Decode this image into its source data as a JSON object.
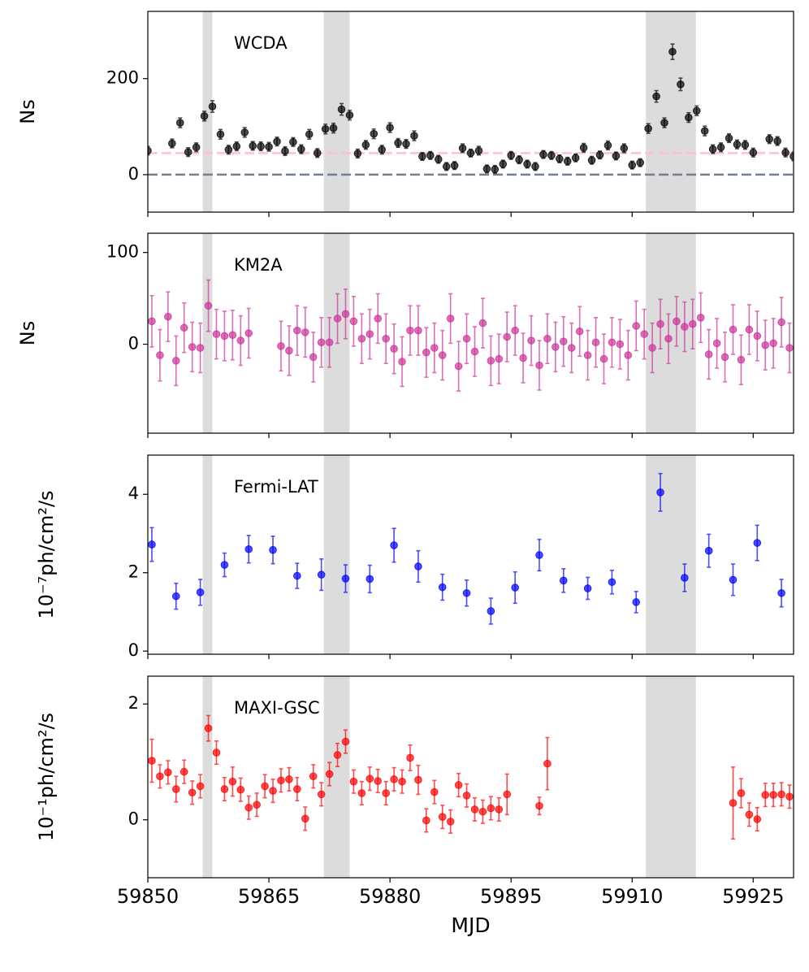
{
  "chart_data": [
    {
      "type": "scatter",
      "annotation": "WCDA",
      "ylabel": "Ns",
      "color": "#000000",
      "x": [
        59850,
        59853,
        59854,
        59855,
        59856,
        59857,
        59858,
        59859,
        59860,
        59861,
        59862,
        59863,
        59864,
        59865,
        59866,
        59867,
        59868,
        59869,
        59870,
        59871,
        59872,
        59873,
        59874,
        59875,
        59876,
        59877,
        59878,
        59879,
        59880,
        59881,
        59882,
        59883,
        59884,
        59885,
        59886,
        59887,
        59888,
        59889,
        59890,
        59891,
        59892,
        59893,
        59894,
        59895,
        59896,
        59897,
        59898,
        59899,
        59900,
        59901,
        59902,
        59903,
        59904,
        59905,
        59906,
        59907,
        59908,
        59909,
        59910,
        59911,
        59912,
        59913,
        59914,
        59915,
        59916,
        59917,
        59918,
        59919,
        59920,
        59921,
        59922,
        59923,
        59924,
        59925,
        59927,
        59928,
        59929,
        59930
      ],
      "values": [
        50,
        65,
        108,
        47,
        57,
        122,
        142,
        84,
        52,
        59,
        88,
        60,
        59,
        58,
        69,
        49,
        68,
        53,
        84,
        45,
        95,
        97,
        136,
        124,
        44,
        62,
        85,
        52,
        98,
        66,
        64,
        81,
        38,
        40,
        32,
        17,
        19,
        55,
        45,
        50,
        12,
        11,
        22,
        40,
        31,
        22,
        17,
        42,
        40,
        33,
        28,
        35,
        56,
        30,
        41,
        61,
        39,
        55,
        20,
        25,
        96,
        163,
        108,
        256,
        188,
        119,
        133,
        91,
        53,
        57,
        76,
        63,
        62,
        46,
        74,
        70,
        46,
        38
      ],
      "errors": [
        9,
        9,
        10,
        9,
        9,
        10,
        12,
        10,
        9,
        9,
        10,
        9,
        9,
        9,
        9,
        9,
        9,
        9,
        10,
        9,
        10,
        10,
        12,
        10,
        9,
        9,
        10,
        9,
        10,
        9,
        9,
        10,
        8,
        8,
        8,
        8,
        8,
        9,
        8,
        9,
        8,
        8,
        8,
        8,
        8,
        8,
        8,
        8,
        8,
        8,
        8,
        8,
        9,
        8,
        8,
        9,
        8,
        9,
        8,
        8,
        10,
        12,
        10,
        16,
        13,
        10,
        10,
        10,
        9,
        9,
        9,
        9,
        9,
        9,
        9,
        9,
        9,
        9
      ],
      "xlim": [
        59850,
        59930
      ],
      "xticks": [
        59850,
        59865,
        59880,
        59895,
        59910,
        59925
      ],
      "ylim": [
        -78,
        340
      ],
      "yticks": [
        0,
        200
      ],
      "shaded_spans": [
        [
          59856.8,
          59858.0
        ],
        [
          59871.8,
          59875.0
        ],
        [
          59911.7,
          59917.9
        ]
      ],
      "hlines": [
        {
          "y": 0,
          "color": "#708090"
        },
        {
          "y": 45,
          "color": "#ffc0cb"
        }
      ]
    },
    {
      "type": "scatter",
      "annotation": "KM2A",
      "ylabel": "Ns",
      "color": "#cc3399",
      "x": [
        59850.5,
        59851.5,
        59852.5,
        59853.5,
        59854.5,
        59855.5,
        59856.5,
        59857.5,
        59858.5,
        59859.5,
        59860.5,
        59861.5,
        59862.5,
        59866.5,
        59867.5,
        59868.5,
        59869.5,
        59870.5,
        59871.5,
        59872.5,
        59873.5,
        59874.5,
        59875.5,
        59876.5,
        59877.5,
        59878.5,
        59879.5,
        59880.5,
        59881.5,
        59882.5,
        59883.5,
        59884.5,
        59885.5,
        59886.5,
        59887.5,
        59888.5,
        59889.5,
        59890.5,
        59891.5,
        59892.5,
        59893.5,
        59894.5,
        59895.5,
        59896.5,
        59897.5,
        59898.5,
        59899.5,
        59900.5,
        59901.5,
        59902.5,
        59903.5,
        59904.5,
        59905.5,
        59906.5,
        59907.5,
        59908.5,
        59909.5,
        59910.5,
        59911.5,
        59912.5,
        59913.5,
        59914.5,
        59915.5,
        59916.5,
        59917.5,
        59918.5,
        59919.5,
        59920.5,
        59921.5,
        59922.5,
        59923.5,
        59924.5,
        59925.5,
        59926.5,
        59927.5,
        59928.5,
        59929.5
      ],
      "values": [
        25,
        -12,
        30,
        -18,
        18,
        -3,
        -4,
        42,
        11,
        9,
        10,
        4,
        12,
        -2,
        -7,
        15,
        13,
        -14,
        2,
        2,
        28,
        33,
        25,
        6,
        11,
        28,
        6,
        -5,
        -19,
        15,
        15,
        -9,
        -4,
        -12,
        28,
        -24,
        6,
        -8,
        23,
        -18,
        -16,
        8,
        15,
        -15,
        4,
        -23,
        6,
        -3,
        3,
        -4,
        14,
        -12,
        2,
        -16,
        2,
        0,
        -12,
        20,
        11,
        -4,
        22,
        6,
        25,
        19,
        22,
        29,
        -11,
        1,
        -14,
        16,
        -17,
        16,
        9,
        -1,
        1,
        24,
        -4
      ],
      "errors": [
        28,
        28,
        27,
        27,
        27,
        27,
        27,
        28,
        27,
        27,
        27,
        27,
        27,
        27,
        27,
        27,
        27,
        27,
        27,
        27,
        27,
        27,
        27,
        27,
        27,
        27,
        27,
        27,
        27,
        27,
        27,
        27,
        27,
        27,
        27,
        27,
        27,
        27,
        27,
        27,
        27,
        27,
        27,
        27,
        27,
        27,
        27,
        27,
        27,
        27,
        27,
        27,
        27,
        27,
        27,
        27,
        27,
        27,
        27,
        27,
        27,
        27,
        27,
        27,
        27,
        27,
        27,
        27,
        27,
        27,
        27,
        27,
        27,
        27,
        27,
        27,
        27
      ],
      "xlim": [
        59850,
        59930
      ],
      "xticks": [
        59850,
        59865,
        59880,
        59895,
        59910,
        59925
      ],
      "ylim": [
        -97,
        121
      ],
      "yticks": [
        0,
        100
      ],
      "shaded_spans": [
        [
          59856.8,
          59858.0
        ],
        [
          59871.8,
          59875.0
        ],
        [
          59911.7,
          59917.9
        ]
      ]
    },
    {
      "type": "scatter",
      "annotation": "Fermi-LAT",
      "ylabel": "10⁻⁷ph/cm²/s",
      "color": "#0000ff",
      "x": [
        59850.5,
        59853.5,
        59856.5,
        59859.5,
        59862.5,
        59865.5,
        59868.5,
        59871.5,
        59874.5,
        59877.5,
        59880.5,
        59883.5,
        59886.5,
        59889.5,
        59892.5,
        59895.5,
        59898.5,
        59901.5,
        59904.5,
        59907.5,
        59910.5,
        59913.5,
        59916.5,
        59919.5,
        59922.5,
        59925.5,
        59928.5
      ],
      "values": [
        2.72,
        1.4,
        1.5,
        2.2,
        2.6,
        2.58,
        1.92,
        1.95,
        1.85,
        1.84,
        2.7,
        2.16,
        1.63,
        1.48,
        1.02,
        1.62,
        2.45,
        1.8,
        1.6,
        1.76,
        1.25,
        4.05,
        1.87,
        2.56,
        1.82,
        2.76,
        1.48
      ],
      "errors": [
        0.43,
        0.33,
        0.33,
        0.3,
        0.35,
        0.35,
        0.32,
        0.4,
        0.35,
        0.35,
        0.43,
        0.4,
        0.33,
        0.33,
        0.33,
        0.4,
        0.4,
        0.3,
        0.28,
        0.3,
        0.27,
        0.48,
        0.35,
        0.42,
        0.4,
        0.45,
        0.35
      ],
      "xlim": [
        59850,
        59930
      ],
      "xticks": [
        59850,
        59865,
        59880,
        59895,
        59910,
        59925
      ],
      "ylim": [
        -0.08,
        5
      ],
      "yticks": [
        0,
        2,
        4
      ],
      "shaded_spans": [
        [
          59856.8,
          59858.0
        ],
        [
          59871.8,
          59875.0
        ],
        [
          59911.7,
          59917.9
        ]
      ]
    },
    {
      "type": "scatter",
      "annotation": "MAXI-GSC",
      "ylabel": "10⁻¹ph/cm²/s",
      "xlabel": "MJD",
      "color": "#ff0000",
      "x": [
        59850.5,
        59851.5,
        59852.5,
        59853.5,
        59854.5,
        59855.5,
        59856.5,
        59857.5,
        59858.5,
        59859.5,
        59860.5,
        59861.5,
        59862.5,
        59863.5,
        59864.5,
        59865.5,
        59866.5,
        59867.5,
        59868.5,
        59869.5,
        59870.5,
        59871.5,
        59872.5,
        59873.5,
        59874.5,
        59875.5,
        59876.5,
        59877.5,
        59878.5,
        59879.5,
        59880.5,
        59881.5,
        59882.5,
        59883.5,
        59884.5,
        59885.5,
        59886.5,
        59887.5,
        59888.5,
        59889.5,
        59890.5,
        59891.5,
        59892.5,
        59893.5,
        59894.5,
        59898.5,
        59899.5,
        59922.5,
        59923.5,
        59924.5,
        59925.5,
        59926.5,
        59927.5,
        59928.5,
        59929.5
      ],
      "values": [
        1.02,
        0.75,
        0.82,
        0.53,
        0.83,
        0.47,
        0.58,
        1.58,
        1.16,
        0.53,
        0.66,
        0.52,
        0.21,
        0.26,
        0.58,
        0.5,
        0.68,
        0.7,
        0.53,
        0.02,
        0.75,
        0.44,
        0.79,
        1.12,
        1.35,
        0.66,
        0.46,
        0.71,
        0.67,
        0.46,
        0.7,
        0.66,
        1.07,
        0.69,
        -0.01,
        0.48,
        0.05,
        -0.03,
        0.6,
        0.42,
        0.18,
        0.14,
        0.2,
        0.18,
        0.44,
        0.24,
        0.97,
        0.29,
        0.46,
        0.09,
        0.01,
        0.43,
        0.43,
        0.44,
        0.4
      ],
      "errors": [
        0.37,
        0.2,
        0.2,
        0.22,
        0.2,
        0.2,
        0.2,
        0.22,
        0.2,
        0.2,
        0.25,
        0.2,
        0.2,
        0.2,
        0.2,
        0.2,
        0.2,
        0.2,
        0.2,
        0.2,
        0.2,
        0.2,
        0.2,
        0.2,
        0.2,
        0.2,
        0.2,
        0.2,
        0.2,
        0.2,
        0.2,
        0.2,
        0.22,
        0.25,
        0.2,
        0.2,
        0.2,
        0.2,
        0.2,
        0.2,
        0.2,
        0.2,
        0.2,
        0.2,
        0.35,
        0.15,
        0.45,
        0.62,
        0.25,
        0.2,
        0.2,
        0.2,
        0.2,
        0.2,
        0.2
      ],
      "xlim": [
        59850,
        59930
      ],
      "xticks": [
        59850,
        59865,
        59880,
        59895,
        59910,
        59925
      ],
      "ylim": [
        -1.0,
        2.48
      ],
      "yticks": [
        0,
        2
      ],
      "shaded_spans": [
        [
          59856.8,
          59858.0
        ],
        [
          59871.8,
          59875.0
        ],
        [
          59911.7,
          59917.9
        ]
      ]
    }
  ]
}
